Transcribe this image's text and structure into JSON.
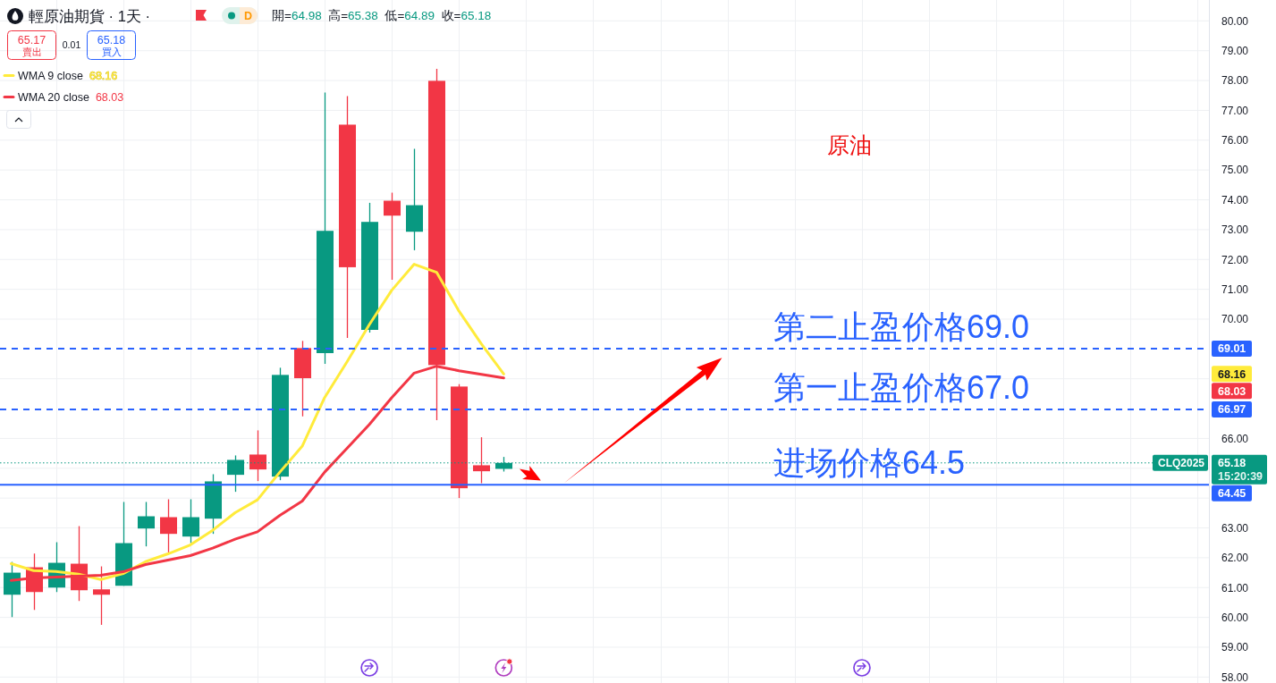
{
  "chart_data": {
    "type": "candlestick",
    "title": "輕原油期貨 · 1天 ·",
    "subtitle": "開=64.98 高=65.38 低=64.89 收=65.18",
    "categories": [
      null,
      null,
      null,
      null,
      null,
      null,
      null,
      null,
      null,
      null,
      null,
      null,
      null,
      null,
      null,
      null,
      null,
      null,
      null,
      null,
      null,
      null,
      null,
      null,
      null,
      null,
      null,
      null,
      null,
      null,
      null,
      null,
      null,
      null,
      null,
      null,
      null,
      null,
      null,
      null,
      null,
      null,
      null,
      null,
      null,
      null,
      null,
      null,
      null,
      null,
      null,
      null,
      null,
      null
    ],
    "ohlc": [
      [
        60.76,
        61.86,
        60.01,
        61.5
      ],
      [
        61.68,
        62.14,
        60.25,
        60.85
      ],
      [
        61.0,
        62.52,
        60.85,
        61.83
      ],
      [
        61.8,
        63.06,
        60.55,
        60.91
      ],
      [
        60.94,
        61.71,
        59.75,
        60.76
      ],
      [
        61.06,
        63.87,
        61.06,
        62.49
      ],
      [
        62.98,
        63.87,
        62.38,
        63.39
      ],
      [
        63.36,
        63.96,
        62.17,
        62.8
      ],
      [
        62.71,
        63.96,
        62.49,
        63.36
      ],
      [
        63.31,
        64.8,
        62.8,
        64.56
      ],
      [
        64.78,
        65.43,
        64.21,
        65.28
      ],
      [
        65.46,
        66.27,
        64.57,
        64.96
      ],
      [
        64.72,
        68.37,
        64.6,
        68.13
      ],
      [
        69.03,
        69.27,
        66.74,
        68.02
      ],
      [
        68.86,
        77.6,
        68.5,
        72.96
      ],
      [
        76.52,
        77.48,
        69.37,
        71.74
      ],
      [
        69.64,
        73.9,
        69.55,
        73.26
      ],
      [
        73.97,
        74.24,
        71.32,
        73.47
      ],
      [
        72.93,
        75.71,
        72.31,
        73.82
      ],
      [
        77.99,
        78.39,
        66.61,
        68.46
      ],
      [
        67.74,
        67.82,
        64.0,
        64.33
      ],
      [
        65.1,
        66.04,
        64.5,
        64.9
      ],
      [
        64.98,
        65.38,
        64.89,
        65.18
      ],
      null,
      null,
      null,
      null,
      null,
      null,
      null,
      null,
      null,
      null,
      null,
      null,
      null,
      null,
      null,
      null,
      null,
      null,
      null,
      null,
      null,
      null,
      null,
      null,
      null,
      null,
      null,
      null,
      null,
      null,
      null
    ],
    "colors": [
      "#089981",
      "#f23645",
      "#089981",
      "#f23645",
      "#f23645",
      "#089981",
      "#089981",
      "#f23645",
      "#089981",
      "#089981",
      "#089981",
      "#f23645",
      "#089981",
      "#f23645",
      "#089981",
      "#f23645",
      "#089981",
      "#f23645",
      "#089981",
      "#f23645",
      "#f23645",
      "#f23645",
      "#089981",
      null,
      null,
      null,
      null,
      null,
      null,
      null,
      null,
      null,
      null,
      null,
      null,
      null,
      null,
      null,
      null,
      null,
      null,
      null,
      null,
      null,
      null,
      null,
      null,
      null,
      null,
      null,
      null,
      null,
      null,
      null
    ],
    "series": [
      {
        "name": "WMA 9 close",
        "type": "line",
        "color": "#ffeb3b",
        "values": [
          61.8,
          61.57,
          61.54,
          61.45,
          61.27,
          61.47,
          61.87,
          62.13,
          62.43,
          62.92,
          63.51,
          63.94,
          64.87,
          65.74,
          67.37,
          68.57,
          69.82,
          70.97,
          71.84,
          71.57,
          70.27,
          69.17,
          68.16,
          null,
          null,
          null,
          null,
          null,
          null,
          null,
          null,
          null,
          null,
          null,
          null,
          null,
          null,
          null,
          null,
          null,
          null,
          null,
          null,
          null,
          null,
          null,
          null,
          null,
          null,
          null,
          null,
          null,
          null,
          null
        ]
      },
      {
        "name": "WMA 20 close",
        "type": "line",
        "color": "#f23645",
        "values": [
          61.24,
          61.32,
          61.35,
          61.38,
          61.41,
          61.53,
          61.77,
          61.92,
          62.07,
          62.32,
          62.62,
          62.87,
          63.42,
          63.9,
          64.87,
          65.67,
          66.47,
          67.37,
          68.19,
          68.42,
          68.27,
          68.15,
          68.03,
          null,
          null,
          null,
          null,
          null,
          null,
          null,
          null,
          null,
          null,
          null,
          null,
          null,
          null,
          null,
          null,
          null,
          null,
          null,
          null,
          null,
          null,
          null,
          null,
          null,
          null,
          null,
          null,
          null,
          null,
          null
        ]
      }
    ],
    "ylim": [
      57.8,
      80.7
    ],
    "yticks": [
      {
        "value": 58,
        "label": "58.00"
      },
      {
        "value": 59,
        "label": "59.00"
      },
      {
        "value": 60,
        "label": "60.00"
      },
      {
        "value": 61,
        "label": "61.00"
      },
      {
        "value": 62,
        "label": "62.00"
      },
      {
        "value": 63,
        "label": "63.00"
      },
      {
        "value": 64,
        "label": null
      },
      {
        "value": 65,
        "label": null
      },
      {
        "value": 66,
        "label": "66.00"
      },
      {
        "value": 68,
        "label": null
      },
      {
        "value": 70,
        "label": "70.00"
      },
      {
        "value": 71,
        "label": "71.00"
      },
      {
        "value": 72,
        "label": "72.00"
      },
      {
        "value": 73,
        "label": "73.00"
      },
      {
        "value": 74,
        "label": "74.00"
      },
      {
        "value": 75,
        "label": "75.00"
      },
      {
        "value": 76,
        "label": "76.00"
      },
      {
        "value": 77,
        "label": "77.00"
      },
      {
        "value": 78,
        "label": "78.00"
      },
      {
        "value": 79,
        "label": "79.00"
      },
      {
        "value": 80,
        "label": "80.00"
      }
    ],
    "grid": true,
    "legend": "top left",
    "tick_labels": "y",
    "ref_lines": [
      {
        "axis": "y",
        "value": 69.01,
        "label": "第二止盈价格69.0",
        "color": "#2962ff",
        "line_style": "dashed"
      },
      {
        "axis": "y",
        "value": 66.97,
        "label": "第一止盈价格67.0",
        "color": "#2962ff",
        "line_style": "dashed"
      },
      {
        "axis": "y",
        "value": 65.18,
        "label": "CLQ2025",
        "color": "#089981",
        "line_style": "dotted"
      },
      {
        "axis": "y",
        "value": 64.45,
        "label": "进场价格64.5",
        "color": "#2962ff",
        "line_style": "solid"
      }
    ],
    "annotations": [
      "原油",
      "65.17",
      "賣出",
      "0.01",
      "65.18",
      "買入",
      "D",
      "68.16",
      "68.03",
      "69.01",
      "66.97",
      "65.18",
      "15:20:39",
      "64.45",
      "68.16",
      "68.03"
    ]
  }
}
